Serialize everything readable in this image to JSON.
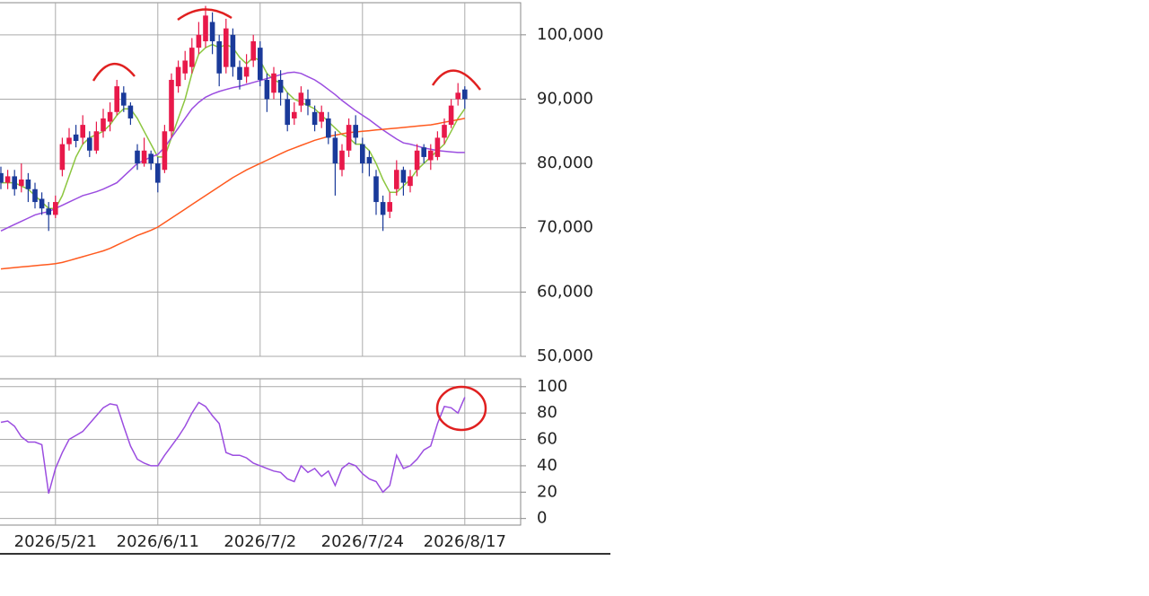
{
  "chart_data": [
    {
      "type": "candlestick",
      "up_color": "#e8194a",
      "down_color": "#1a3a9a",
      "open": [
        78500,
        77000,
        78000,
        76500,
        77500,
        76000,
        74500,
        73000,
        72000,
        79000,
        83000,
        84500,
        84000,
        84000,
        82000,
        85000,
        86500,
        88000,
        91000,
        89000,
        82000,
        80000,
        81500,
        80000,
        79000,
        85000,
        92000,
        94000,
        95000,
        98000,
        99000,
        102000,
        99000,
        95000,
        100000,
        95000,
        93500,
        96000,
        98000,
        93000,
        91000,
        93000,
        90000,
        87000,
        89000,
        90000,
        88000,
        86500,
        87000,
        84000,
        79000,
        82000,
        86000,
        83000,
        81000,
        78000,
        74000,
        72500,
        76000,
        79000,
        76500,
        79000,
        82500,
        80500,
        81000,
        84000,
        86000,
        90000,
        91500
      ],
      "high": [
        79500,
        79000,
        79000,
        80000,
        78500,
        77000,
        75500,
        74000,
        75000,
        84000,
        85500,
        86000,
        87500,
        85000,
        86500,
        88500,
        89500,
        93000,
        92000,
        89500,
        83000,
        84000,
        82000,
        81000,
        86000,
        94000,
        96000,
        97500,
        99500,
        102000,
        104500,
        103500,
        100000,
        102500,
        101000,
        96000,
        97000,
        100000,
        99000,
        94000,
        95000,
        94500,
        91000,
        89500,
        92000,
        91500,
        89000,
        89000,
        88000,
        85000,
        83000,
        87000,
        87500,
        84000,
        82000,
        79000,
        75000,
        75500,
        80500,
        79500,
        79000,
        83000,
        83000,
        83000,
        85000,
        87000,
        90000,
        92500,
        92000
      ],
      "low": [
        76000,
        76000,
        75000,
        75500,
        74000,
        73000,
        72000,
        69500,
        71500,
        78000,
        82000,
        82500,
        83000,
        81000,
        81500,
        84000,
        85000,
        87500,
        88000,
        86000,
        79000,
        79500,
        79000,
        75500,
        78500,
        84000,
        91000,
        93000,
        94000,
        97000,
        98000,
        97000,
        92000,
        94000,
        93500,
        91500,
        92500,
        95000,
        92000,
        88000,
        90000,
        89000,
        85000,
        86000,
        88000,
        87500,
        85000,
        85500,
        83000,
        75000,
        78000,
        81000,
        83000,
        78500,
        78000,
        72000,
        69500,
        71500,
        75000,
        75000,
        75500,
        78000,
        80000,
        79000,
        80500,
        83000,
        85500,
        89000,
        88500
      ],
      "close": [
        77000,
        78000,
        76000,
        77500,
        76000,
        74000,
        73000,
        72000,
        74000,
        83000,
        84000,
        83500,
        86000,
        82000,
        85000,
        87000,
        88000,
        92000,
        89000,
        87000,
        80000,
        82000,
        80000,
        77000,
        85000,
        93000,
        95000,
        96000,
        98000,
        100000,
        103000,
        99000,
        94000,
        101000,
        95000,
        93000,
        95000,
        99000,
        93000,
        90000,
        94000,
        91000,
        86000,
        88000,
        91000,
        89000,
        86000,
        88000,
        84000,
        80000,
        82000,
        86000,
        84000,
        80000,
        80000,
        74000,
        72000,
        74000,
        79000,
        77000,
        78000,
        82000,
        81000,
        82000,
        84000,
        86000,
        89000,
        91000,
        90000
      ],
      "series": [
        {
          "color": "#8cc63f",
          "values": [
            77000,
            77000,
            77000,
            76500,
            76000,
            75000,
            74000,
            73000,
            73000,
            75000,
            78000,
            81000,
            83000,
            84000,
            84500,
            85000,
            86000,
            87500,
            88500,
            88500,
            87000,
            85000,
            83000,
            81000,
            81000,
            84000,
            87000,
            90000,
            94000,
            97000,
            98000,
            98500,
            98000,
            98500,
            98000,
            96500,
            95500,
            96500,
            96000,
            94000,
            93000,
            92500,
            91000,
            90000,
            89500,
            89000,
            88500,
            87500,
            86500,
            85500,
            84500,
            84000,
            83000,
            83000,
            82000,
            80000,
            77500,
            75500,
            75500,
            76500,
            77500,
            79000,
            80000,
            81000,
            82000,
            83000,
            85000,
            87000,
            88500
          ]
        },
        {
          "color": "#9b4de0",
          "values": [
            69500,
            70000,
            70500,
            71000,
            71500,
            72000,
            72300,
            72500,
            73000,
            73500,
            74000,
            74500,
            75000,
            75300,
            75600,
            76000,
            76500,
            77000,
            78000,
            79000,
            80000,
            80500,
            81000,
            81400,
            82500,
            84000,
            85500,
            87000,
            88500,
            89500,
            90300,
            90800,
            91200,
            91500,
            91800,
            92000,
            92300,
            92600,
            92900,
            93200,
            93500,
            93800,
            94100,
            94200,
            94000,
            93500,
            93000,
            92300,
            91500,
            90700,
            89800,
            89000,
            88200,
            87500,
            86800,
            86000,
            85200,
            84500,
            83800,
            83200,
            83000,
            82700,
            82400,
            82200,
            82000,
            81900,
            81800,
            81700,
            81700
          ]
        },
        {
          "color": "#ff5a1f",
          "values": [
            63600,
            63700,
            63800,
            63900,
            64000,
            64100,
            64200,
            64300,
            64400,
            64600,
            64900,
            65200,
            65500,
            65800,
            66100,
            66400,
            66800,
            67300,
            67800,
            68300,
            68800,
            69200,
            69600,
            70100,
            70800,
            71500,
            72200,
            72900,
            73600,
            74300,
            75000,
            75700,
            76400,
            77100,
            77800,
            78400,
            79000,
            79500,
            80000,
            80500,
            81000,
            81500,
            82000,
            82400,
            82800,
            83200,
            83600,
            83900,
            84200,
            84400,
            84600,
            84800,
            84900,
            85000,
            85100,
            85200,
            85300,
            85400,
            85500,
            85600,
            85700,
            85800,
            85900,
            86000,
            86200,
            86400,
            86600,
            86800,
            87000
          ]
        }
      ],
      "ylim": [
        50000,
        105000
      ],
      "yticks": [
        {
          "value": 50000,
          "label": "50,000"
        },
        {
          "value": 60000,
          "label": "60,000"
        },
        {
          "value": 70000,
          "label": "70,000"
        },
        {
          "value": 80000,
          "label": "80,000"
        },
        {
          "value": 90000,
          "label": "90,000"
        },
        {
          "value": 100000,
          "label": "100,000"
        }
      ],
      "grid": true
    },
    {
      "type": "line",
      "color": "#9b4de0",
      "categories": [
        null,
        null,
        null,
        null,
        null,
        null,
        null,
        null,
        "2026/5/21",
        null,
        null,
        null,
        null,
        null,
        null,
        null,
        null,
        null,
        null,
        null,
        null,
        null,
        null,
        "2026/6/11",
        null,
        null,
        null,
        null,
        null,
        null,
        null,
        null,
        null,
        null,
        null,
        null,
        null,
        null,
        "2026/7/2",
        null,
        null,
        null,
        null,
        null,
        null,
        null,
        null,
        null,
        null,
        null,
        null,
        null,
        null,
        "2026/7/24",
        null,
        null,
        null,
        null,
        null,
        null,
        null,
        null,
        null,
        null,
        null,
        null,
        null,
        null,
        "2026/8/17"
      ],
      "values": [
        73,
        74,
        70,
        62,
        58,
        58,
        56,
        19,
        38,
        50,
        60,
        63,
        66,
        72,
        78,
        84,
        87,
        86,
        70,
        55,
        45,
        42,
        40,
        40,
        48,
        55,
        62,
        70,
        80,
        88,
        85,
        78,
        72,
        50,
        48,
        48,
        46,
        42,
        40,
        38,
        36,
        35,
        30,
        28,
        40,
        35,
        38,
        32,
        36,
        25,
        38,
        42,
        40,
        34,
        30,
        28,
        20,
        25,
        48,
        38,
        40,
        45,
        52,
        55,
        72,
        85,
        84,
        80,
        92
      ],
      "ylim": [
        -5,
        106
      ],
      "yticks": [
        0,
        20,
        40,
        60,
        80,
        100
      ],
      "grid": true
    }
  ]
}
